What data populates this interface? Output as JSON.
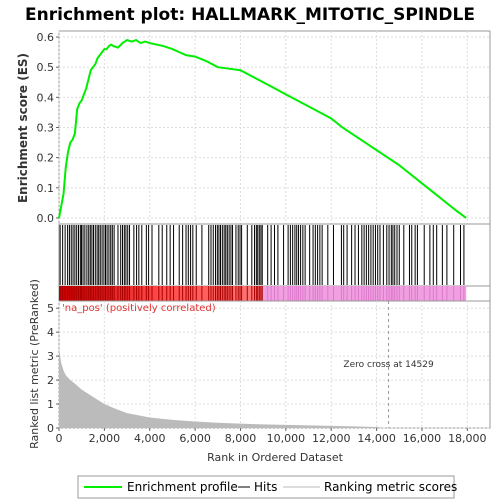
{
  "title": "Enrichment plot: HALLMARK_MITOTIC_SPINDLE",
  "legend": {
    "enrichment": "Enrichment profile",
    "hits": "Hits",
    "ranking": "Ranking metric scores"
  },
  "colors": {
    "enrichment": "#00ee00",
    "hits": "#000000",
    "ranking": "#bbbbbb",
    "pos_band": "#ee2020",
    "neg_band": "#f0a0e0",
    "grid": "#dddddd"
  },
  "chart_data": [
    {
      "type": "line",
      "name": "enrichment-profile",
      "ylabel": "Enrichment score (ES)",
      "xlim": [
        0,
        19000
      ],
      "ylim": [
        -0.02,
        0.62
      ],
      "yticks": [
        0.0,
        0.1,
        0.2,
        0.3,
        0.4,
        0.5,
        0.6
      ],
      "yticklabels": [
        "0.0",
        "0.1",
        "0.2",
        "0.3",
        "0.4",
        "0.5",
        "0.6"
      ],
      "grid": true,
      "x": [
        0,
        100,
        200,
        300,
        400,
        500,
        600,
        700,
        800,
        900,
        1000,
        1100,
        1200,
        1300,
        1400,
        1500,
        1600,
        1700,
        1800,
        1900,
        2000,
        2100,
        2200,
        2300,
        2400,
        2600,
        2800,
        3000,
        3200,
        3400,
        3600,
        3800,
        4000,
        4300,
        4600,
        5000,
        5300,
        5600,
        6000,
        6500,
        7000,
        7500,
        8000,
        8500,
        9000,
        9500,
        10000,
        10500,
        11000,
        11500,
        12000,
        12500,
        13000,
        13500,
        14000,
        14500,
        15000,
        15500,
        16000,
        16500,
        17000,
        17500,
        17950
      ],
      "y": [
        0.0,
        0.04,
        0.08,
        0.17,
        0.22,
        0.25,
        0.26,
        0.28,
        0.36,
        0.38,
        0.39,
        0.41,
        0.43,
        0.46,
        0.49,
        0.5,
        0.51,
        0.53,
        0.54,
        0.55,
        0.56,
        0.56,
        0.57,
        0.575,
        0.57,
        0.565,
        0.58,
        0.59,
        0.585,
        0.59,
        0.58,
        0.585,
        0.58,
        0.575,
        0.57,
        0.56,
        0.55,
        0.54,
        0.535,
        0.52,
        0.5,
        0.495,
        0.49,
        0.47,
        0.45,
        0.43,
        0.41,
        0.39,
        0.37,
        0.35,
        0.33,
        0.3,
        0.275,
        0.25,
        0.225,
        0.2,
        0.175,
        0.145,
        0.115,
        0.085,
        0.055,
        0.025,
        0.0
      ]
    },
    {
      "type": "hits",
      "name": "hits",
      "positions": [
        50,
        160,
        270,
        380,
        460,
        540,
        620,
        700,
        780,
        860,
        940,
        990,
        1060,
        1140,
        1230,
        1310,
        1380,
        1450,
        1520,
        1600,
        1680,
        1750,
        1820,
        1900,
        1980,
        2050,
        2120,
        2200,
        2280,
        2350,
        2430,
        2600,
        2720,
        2800,
        2880,
        2950,
        3030,
        3110,
        3300,
        3420,
        3520,
        3650,
        3850,
        3950,
        4100,
        4400,
        4550,
        4750,
        4900,
        5050,
        5300,
        5450,
        5600,
        5700,
        5800,
        5900,
        6050,
        6300,
        6600,
        6700,
        6800,
        6900,
        6980,
        7050,
        7120,
        7200,
        7280,
        7350,
        7420,
        7500,
        7580,
        7650,
        7800,
        7900,
        7980,
        8050,
        8300,
        8500,
        8620,
        8700,
        8760,
        8830,
        8900,
        8960,
        9200,
        9350,
        9500,
        9650,
        9900,
        10100,
        10200,
        10300,
        10400,
        10480,
        10560,
        10650,
        10750,
        10850,
        11050,
        11200,
        11300,
        11400,
        11500,
        11600,
        11850,
        12100,
        12450,
        12550,
        12700,
        12900,
        13050,
        13200,
        13350,
        13450,
        13550,
        13650,
        13750,
        13850,
        13950,
        14050,
        14150,
        14300,
        14450,
        14550,
        14650,
        14720,
        14800,
        14900,
        15000,
        15200,
        15450,
        15550,
        15700,
        15800,
        16100,
        16350,
        16500,
        16650,
        16900,
        17100,
        17400,
        17700,
        17850
      ]
    },
    {
      "type": "area",
      "name": "ranking-metric",
      "xlabel": "Rank in Ordered Dataset",
      "ylabel": "Ranked list metric (PreRanked)",
      "xlim": [
        0,
        19000
      ],
      "ylim": [
        0,
        5.3
      ],
      "yticks": [
        0,
        1,
        2,
        3,
        4,
        5
      ],
      "yticklabels": [
        "0",
        "1",
        "2",
        "3",
        "4",
        "5"
      ],
      "xticks": [
        0,
        2000,
        4000,
        6000,
        8000,
        10000,
        12000,
        14000,
        16000,
        18000
      ],
      "xticklabels": [
        "0",
        "2,000",
        "4,000",
        "6,000",
        "8,000",
        "10,000",
        "12,000",
        "14,000",
        "16,000",
        "18,000"
      ],
      "grid": true,
      "x": [
        0,
        50,
        100,
        200,
        300,
        500,
        700,
        1000,
        1500,
        2000,
        2500,
        3000,
        4000,
        5000,
        6000,
        7000,
        8000,
        9000,
        10000,
        11000,
        12000,
        13000,
        14000,
        14529
      ],
      "y": [
        3.4,
        3.0,
        2.7,
        2.4,
        2.2,
        2.0,
        1.85,
        1.6,
        1.3,
        1.0,
        0.8,
        0.62,
        0.44,
        0.34,
        0.27,
        0.22,
        0.18,
        0.15,
        0.13,
        0.11,
        0.09,
        0.07,
        0.04,
        0.0
      ],
      "annotations": {
        "zero_cross_label": "Zero cross at 14529",
        "zero_cross_x": 14529,
        "pos_label": "'na_pos' (positively correlated)"
      }
    }
  ]
}
